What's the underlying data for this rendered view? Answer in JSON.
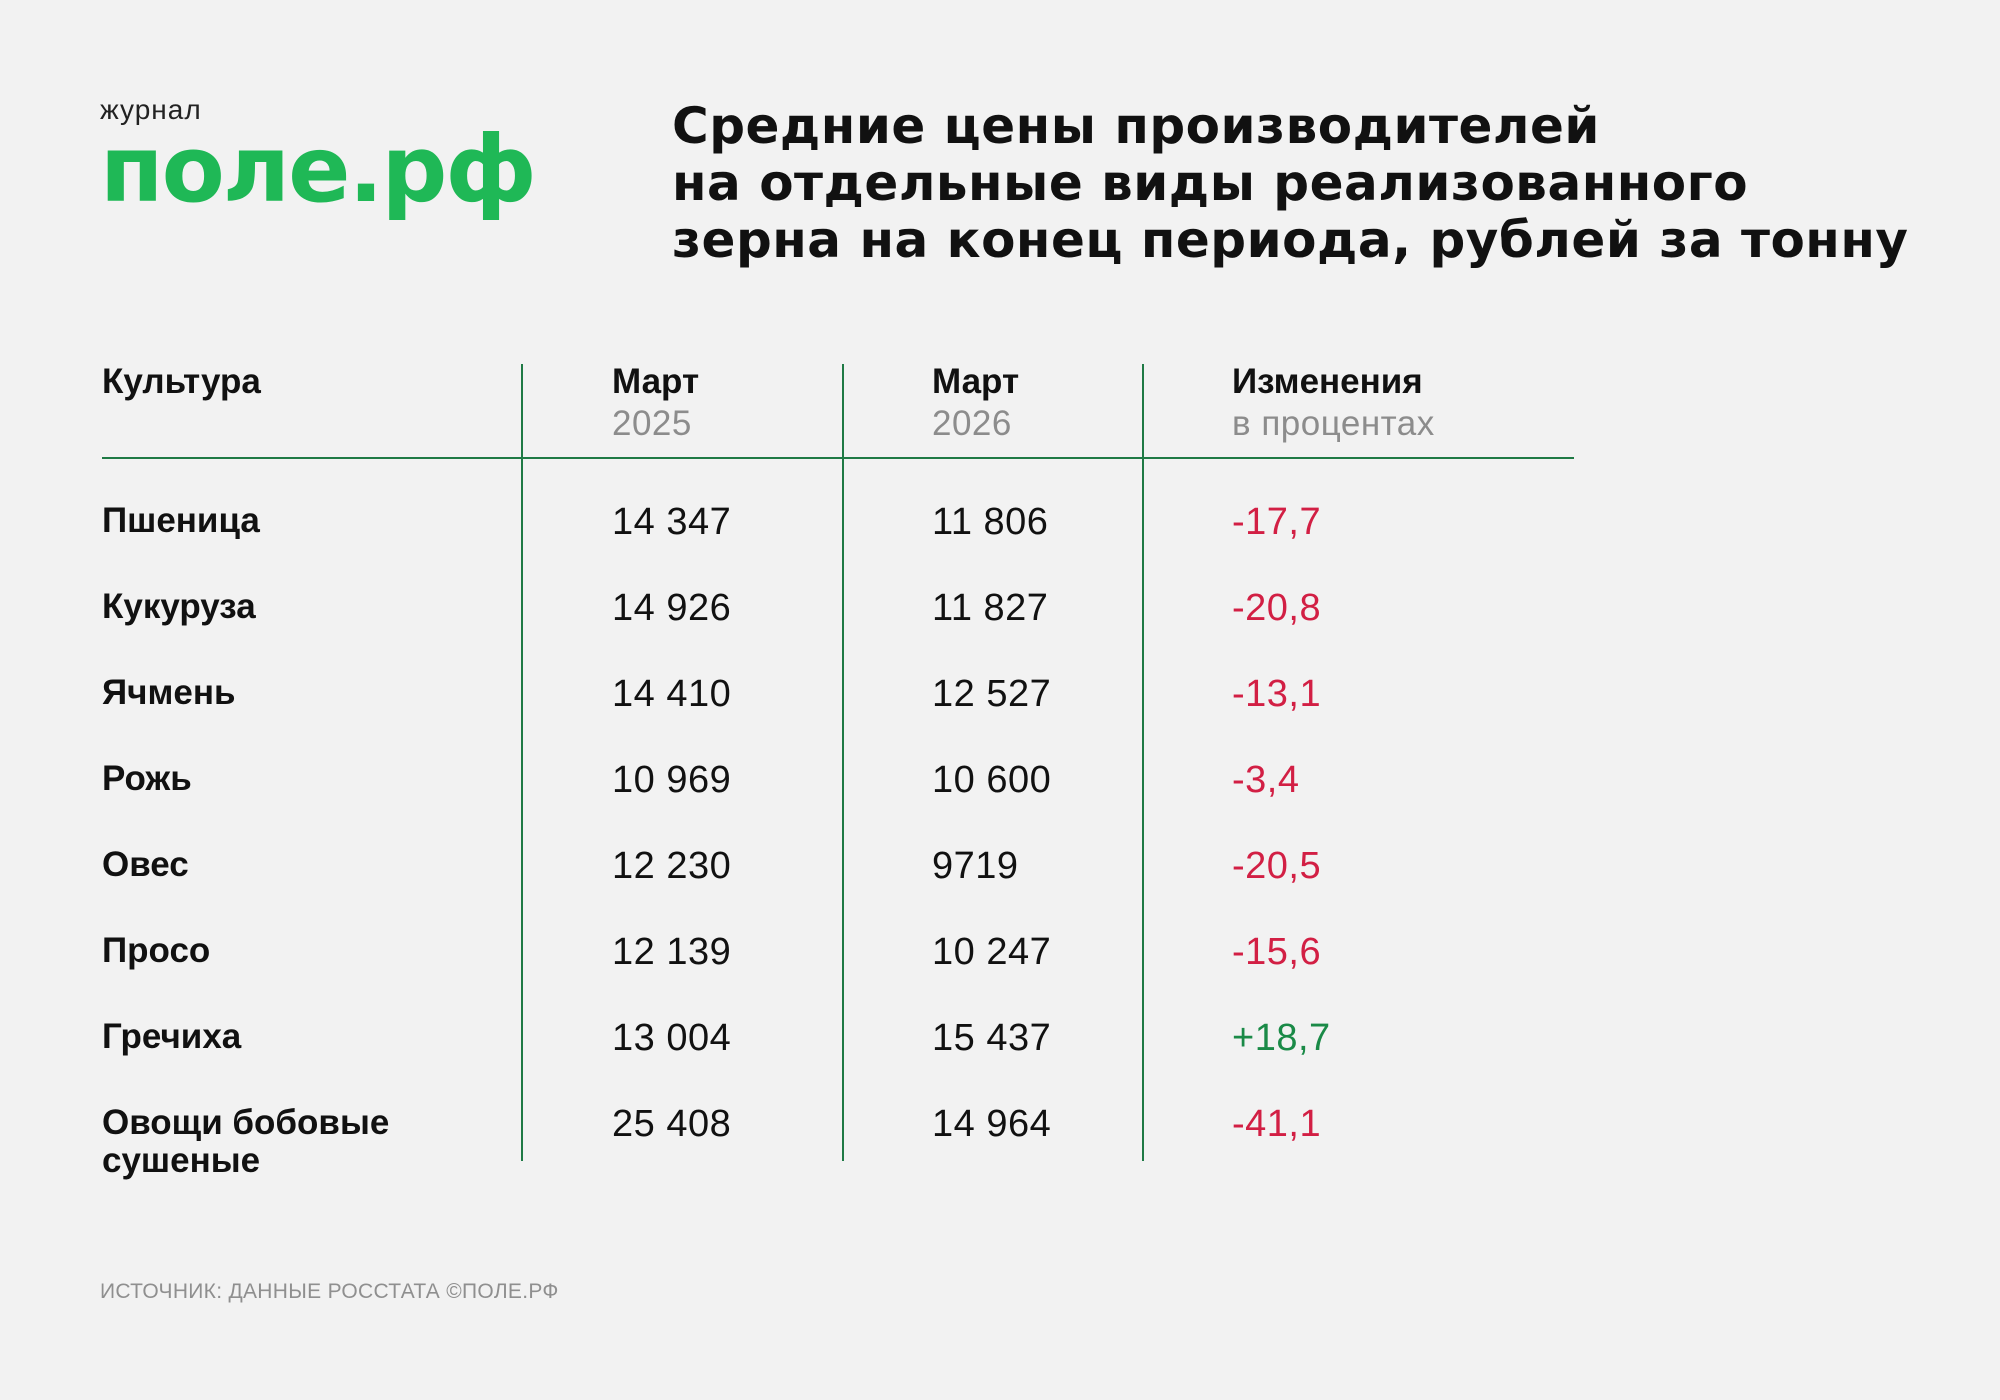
{
  "logo": {
    "small": "журнал",
    "big": "поле.рф"
  },
  "title_lines": [
    "Средние цены производителей",
    "на отдельные виды реализованного",
    "зерна на конец периода, рублей за тонну"
  ],
  "table": {
    "headers": [
      {
        "main": "Культура",
        "sub": ""
      },
      {
        "main": "Март",
        "sub": "2025"
      },
      {
        "main": "Март",
        "sub": "2026"
      },
      {
        "main": "Изменения",
        "sub": "в процентах"
      }
    ],
    "rows": [
      {
        "crop": "Пшеница",
        "v2025": "14 347",
        "v2026": "11 806",
        "change": "-17,7"
      },
      {
        "crop": "Кукуруза",
        "v2025": "14 926",
        "v2026": "11 827",
        "change": "-20,8"
      },
      {
        "crop": "Ячмень",
        "v2025": "14 410",
        "v2026": "12 527",
        "change": "-13,1"
      },
      {
        "crop": "Рожь",
        "v2025": "10 969",
        "v2026": "10 600",
        "change": "-3,4"
      },
      {
        "crop": "Овес",
        "v2025": "12 230",
        "v2026": "9719",
        "change": "-20,5"
      },
      {
        "crop": "Просо",
        "v2025": "12 139",
        "v2026": "10 247",
        "change": "-15,6"
      },
      {
        "crop": "Гречиха",
        "v2025": "13 004",
        "v2026": "15 437",
        "change": "+18,7"
      },
      {
        "crop": "Овощи бобовые сушеные",
        "v2025": "25 408",
        "v2026": "14 964",
        "change": "-41,1"
      }
    ]
  },
  "source": "ИСТОЧНИК: ДАННЫЕ РОССТАТА ©ПОЛЕ.РФ",
  "colors": {
    "brand_green": "#1fb856",
    "line_green": "#1f7a45",
    "negative": "#d21f44",
    "positive": "#1a8a47"
  },
  "chart_data": {
    "type": "table",
    "title": "Средние цены производителей на отдельные виды реализованного зерна на конец периода, рублей за тонну",
    "columns": [
      "Культура",
      "Март 2025",
      "Март 2026",
      "Изменения в процентах"
    ],
    "rows": [
      [
        "Пшеница",
        14347,
        11806,
        -17.7
      ],
      [
        "Кукуруза",
        14926,
        11827,
        -20.8
      ],
      [
        "Ячмень",
        14410,
        12527,
        -13.1
      ],
      [
        "Рожь",
        10969,
        10600,
        -3.4
      ],
      [
        "Овес",
        12230,
        9719,
        -20.5
      ],
      [
        "Просо",
        12139,
        10247,
        -15.6
      ],
      [
        "Гречиха",
        13004,
        15437,
        18.7
      ],
      [
        "Овощи бобовые сушеные",
        25408,
        14964,
        -41.1
      ]
    ]
  }
}
